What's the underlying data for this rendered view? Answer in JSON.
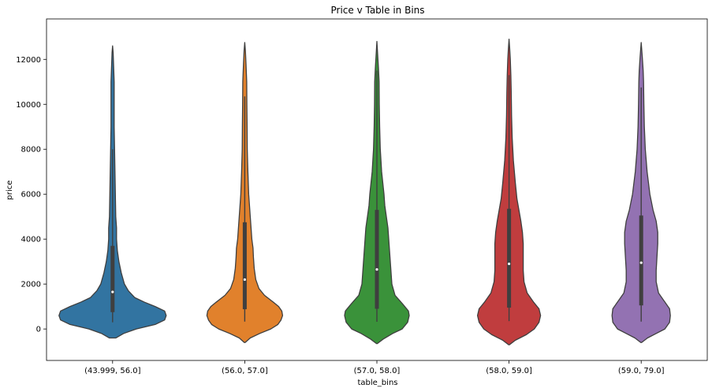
{
  "chart_data": {
    "type": "violin",
    "title": "Price v Table in Bins",
    "xlabel": "table_bins",
    "ylabel": "price",
    "ylim": [
      -1400,
      13800
    ],
    "yticks": [
      0,
      2000,
      4000,
      6000,
      8000,
      10000,
      12000
    ],
    "categories": [
      "(43.999, 56.0]",
      "(56.0, 57.0]",
      "(57.0, 58.0]",
      "(58.0, 59.0]",
      "(59.0, 79.0]"
    ],
    "colors": [
      "#3274a1",
      "#e1812c",
      "#3a923a",
      "#c03d3e",
      "#9372b2"
    ],
    "series": [
      {
        "min": 300,
        "q1": 750,
        "median": 1650,
        "q3": 3700,
        "whisker_high": 8000,
        "extent": [
          -400,
          12600
        ],
        "density": [
          [
            -400,
            4
          ],
          [
            -200,
            14
          ],
          [
            0,
            30
          ],
          [
            200,
            54
          ],
          [
            400,
            66
          ],
          [
            600,
            68
          ],
          [
            800,
            66
          ],
          [
            1000,
            54
          ],
          [
            1200,
            40
          ],
          [
            1400,
            28
          ],
          [
            1700,
            20
          ],
          [
            2000,
            15
          ],
          [
            2500,
            11
          ],
          [
            3000,
            8
          ],
          [
            3500,
            6
          ],
          [
            4000,
            5
          ],
          [
            4500,
            5
          ],
          [
            5000,
            4
          ],
          [
            6000,
            3.5
          ],
          [
            7000,
            3
          ],
          [
            8000,
            2.5
          ],
          [
            9000,
            2
          ],
          [
            10000,
            2
          ],
          [
            11000,
            2
          ],
          [
            11700,
            1.3
          ],
          [
            12300,
            0.7
          ],
          [
            12600,
            0
          ]
        ]
      },
      {
        "min": 330,
        "q1": 880,
        "median": 2200,
        "q3": 4750,
        "whisker_high": 10350,
        "extent": [
          -600,
          12750
        ],
        "density": [
          [
            -600,
            0.5
          ],
          [
            -400,
            7
          ],
          [
            -200,
            19
          ],
          [
            0,
            33
          ],
          [
            200,
            42
          ],
          [
            400,
            46
          ],
          [
            600,
            48
          ],
          [
            800,
            47
          ],
          [
            1000,
            43
          ],
          [
            1200,
            36
          ],
          [
            1500,
            25
          ],
          [
            1800,
            18
          ],
          [
            2200,
            14
          ],
          [
            2700,
            12
          ],
          [
            3200,
            11
          ],
          [
            3600,
            10.5
          ],
          [
            4000,
            9
          ],
          [
            4500,
            8
          ],
          [
            5000,
            7
          ],
          [
            6000,
            5
          ],
          [
            7000,
            4
          ],
          [
            8000,
            3.2
          ],
          [
            9000,
            3
          ],
          [
            10000,
            2.7
          ],
          [
            11000,
            2.5
          ],
          [
            11800,
            1.6
          ],
          [
            12400,
            0.8
          ],
          [
            12750,
            0
          ]
        ]
      },
      {
        "min": 320,
        "q1": 900,
        "median": 2650,
        "q3": 5300,
        "whisker_high": 11500,
        "extent": [
          -650,
          12800
        ],
        "density": [
          [
            -650,
            0.5
          ],
          [
            -450,
            8
          ],
          [
            -200,
            20
          ],
          [
            0,
            32
          ],
          [
            300,
            39
          ],
          [
            600,
            41
          ],
          [
            800,
            40
          ],
          [
            1100,
            33
          ],
          [
            1500,
            23
          ],
          [
            2000,
            19
          ],
          [
            2500,
            18
          ],
          [
            3000,
            17
          ],
          [
            3500,
            16
          ],
          [
            4000,
            15
          ],
          [
            4500,
            14
          ],
          [
            5000,
            12
          ],
          [
            5500,
            10
          ],
          [
            6000,
            9
          ],
          [
            7000,
            6
          ],
          [
            8000,
            4.3
          ],
          [
            9000,
            3.5
          ],
          [
            10000,
            3
          ],
          [
            11000,
            2.8
          ],
          [
            11600,
            2
          ],
          [
            12200,
            1
          ],
          [
            12800,
            0
          ]
        ]
      },
      {
        "min": 350,
        "q1": 950,
        "median": 2900,
        "q3": 5350,
        "whisker_high": 11300,
        "extent": [
          -700,
          12900
        ],
        "density": [
          [
            -700,
            0.5
          ],
          [
            -500,
            8
          ],
          [
            -250,
            22
          ],
          [
            0,
            32
          ],
          [
            300,
            38
          ],
          [
            600,
            40
          ],
          [
            900,
            38
          ],
          [
            1200,
            31
          ],
          [
            1600,
            23
          ],
          [
            2100,
            19
          ],
          [
            2600,
            18
          ],
          [
            3200,
            18
          ],
          [
            3800,
            18
          ],
          [
            4300,
            17
          ],
          [
            4800,
            15
          ],
          [
            5300,
            12.5
          ],
          [
            5800,
            10
          ],
          [
            6500,
            8
          ],
          [
            7500,
            5.5
          ],
          [
            8500,
            4
          ],
          [
            9500,
            3.2
          ],
          [
            10500,
            2.8
          ],
          [
            11300,
            2.3
          ],
          [
            12000,
            1.6
          ],
          [
            12500,
            0.8
          ],
          [
            12900,
            0
          ]
        ]
      },
      {
        "min": 330,
        "q1": 1050,
        "median": 2950,
        "q3": 5050,
        "whisker_high": 10750,
        "extent": [
          -600,
          12750
        ],
        "density": [
          [
            -600,
            0.5
          ],
          [
            -400,
            8
          ],
          [
            -200,
            19
          ],
          [
            0,
            30
          ],
          [
            300,
            36
          ],
          [
            600,
            37
          ],
          [
            900,
            36
          ],
          [
            1200,
            30
          ],
          [
            1600,
            22
          ],
          [
            2100,
            19
          ],
          [
            2600,
            19
          ],
          [
            3200,
            20
          ],
          [
            3800,
            21
          ],
          [
            4300,
            21
          ],
          [
            4800,
            19
          ],
          [
            5300,
            15
          ],
          [
            6000,
            11
          ],
          [
            7000,
            7.5
          ],
          [
            8000,
            5.2
          ],
          [
            9000,
            4
          ],
          [
            10000,
            3.4
          ],
          [
            11000,
            3
          ],
          [
            11500,
            2.5
          ],
          [
            12100,
            1.4
          ],
          [
            12750,
            0
          ]
        ]
      }
    ]
  }
}
